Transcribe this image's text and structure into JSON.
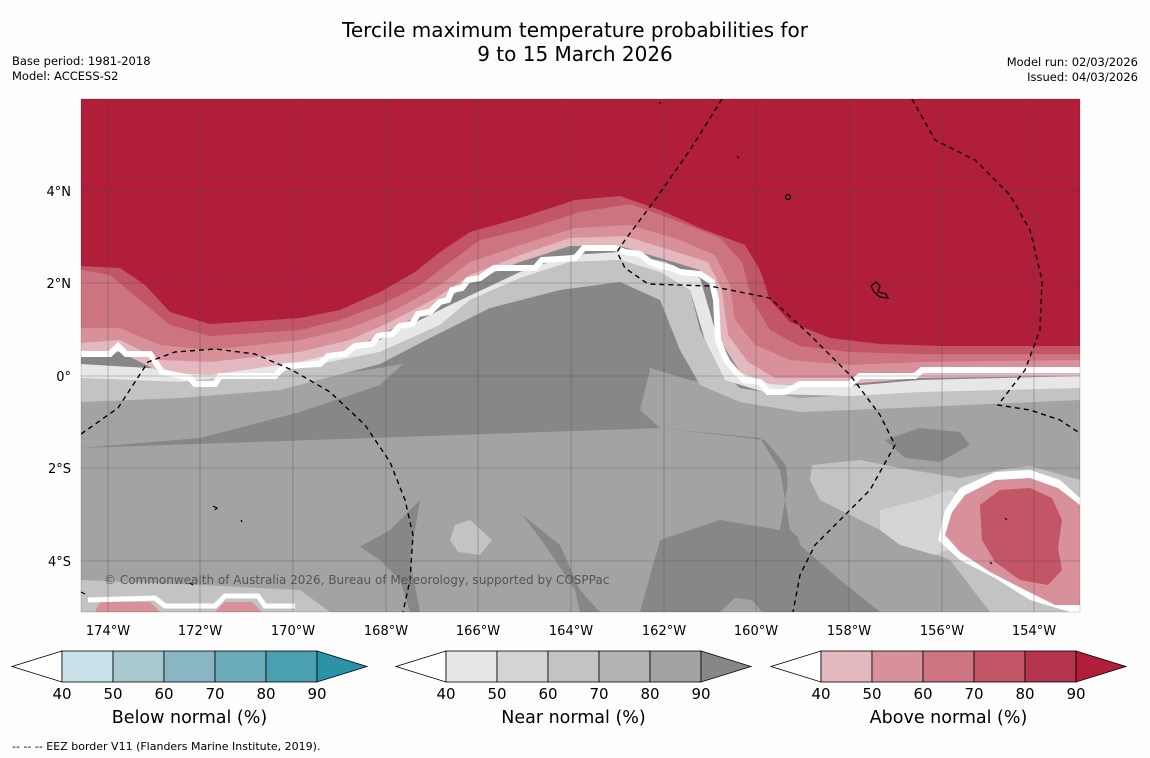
{
  "title": {
    "line1": "Tercile maximum temperature probabilities for",
    "line2": "9 to 15 March 2026"
  },
  "meta": {
    "base_period": "Base period: 1981-2018",
    "model": "Model: ACCESS-S2",
    "model_run": "Model run: 02/03/2026",
    "issued": "Issued: 04/03/2026"
  },
  "map": {
    "lon_labels": [
      "174°W",
      "172°W",
      "170°W",
      "168°W",
      "166°W",
      "164°W",
      "162°W",
      "160°W",
      "158°W",
      "156°W",
      "154°W"
    ],
    "lat_labels": [
      "4°N",
      "2°N",
      "0°",
      "2°S",
      "4°S"
    ],
    "copyright": "© Commonwealth of Australia 2026, Bureau of Meteorology, supported by COSPPac",
    "colors": {
      "above_max": "#b01e3a",
      "near_max": "#878787",
      "land_outline": "#000000",
      "eez_border": "#000000"
    }
  },
  "colorbars": [
    {
      "name": "below",
      "title": "Below normal (%)",
      "ticks": [
        "40",
        "50",
        "60",
        "70",
        "80",
        "90"
      ],
      "colors": [
        "#ffffff",
        "#c9e2ea",
        "#a8c8cf",
        "#89b6c3",
        "#6aacba",
        "#4aa0b1",
        "#2b92a8"
      ]
    },
    {
      "name": "near",
      "title": "Near normal (%)",
      "ticks": [
        "40",
        "50",
        "60",
        "70",
        "80",
        "90"
      ],
      "colors": [
        "#ffffff",
        "#e7e7e7",
        "#d4d4d4",
        "#c3c3c3",
        "#b3b3b3",
        "#a3a3a3",
        "#878787"
      ]
    },
    {
      "name": "above",
      "title": "Above normal (%)",
      "ticks": [
        "40",
        "50",
        "60",
        "70",
        "80",
        "90"
      ],
      "colors": [
        "#ffffff",
        "#e3b8bf",
        "#d8919b",
        "#cc7480",
        "#c25566",
        "#b6354e",
        "#b01e3a"
      ]
    }
  ],
  "footnote": "--  --  -- EEZ border V11 (Flanders Marine Institute, 2019)."
}
